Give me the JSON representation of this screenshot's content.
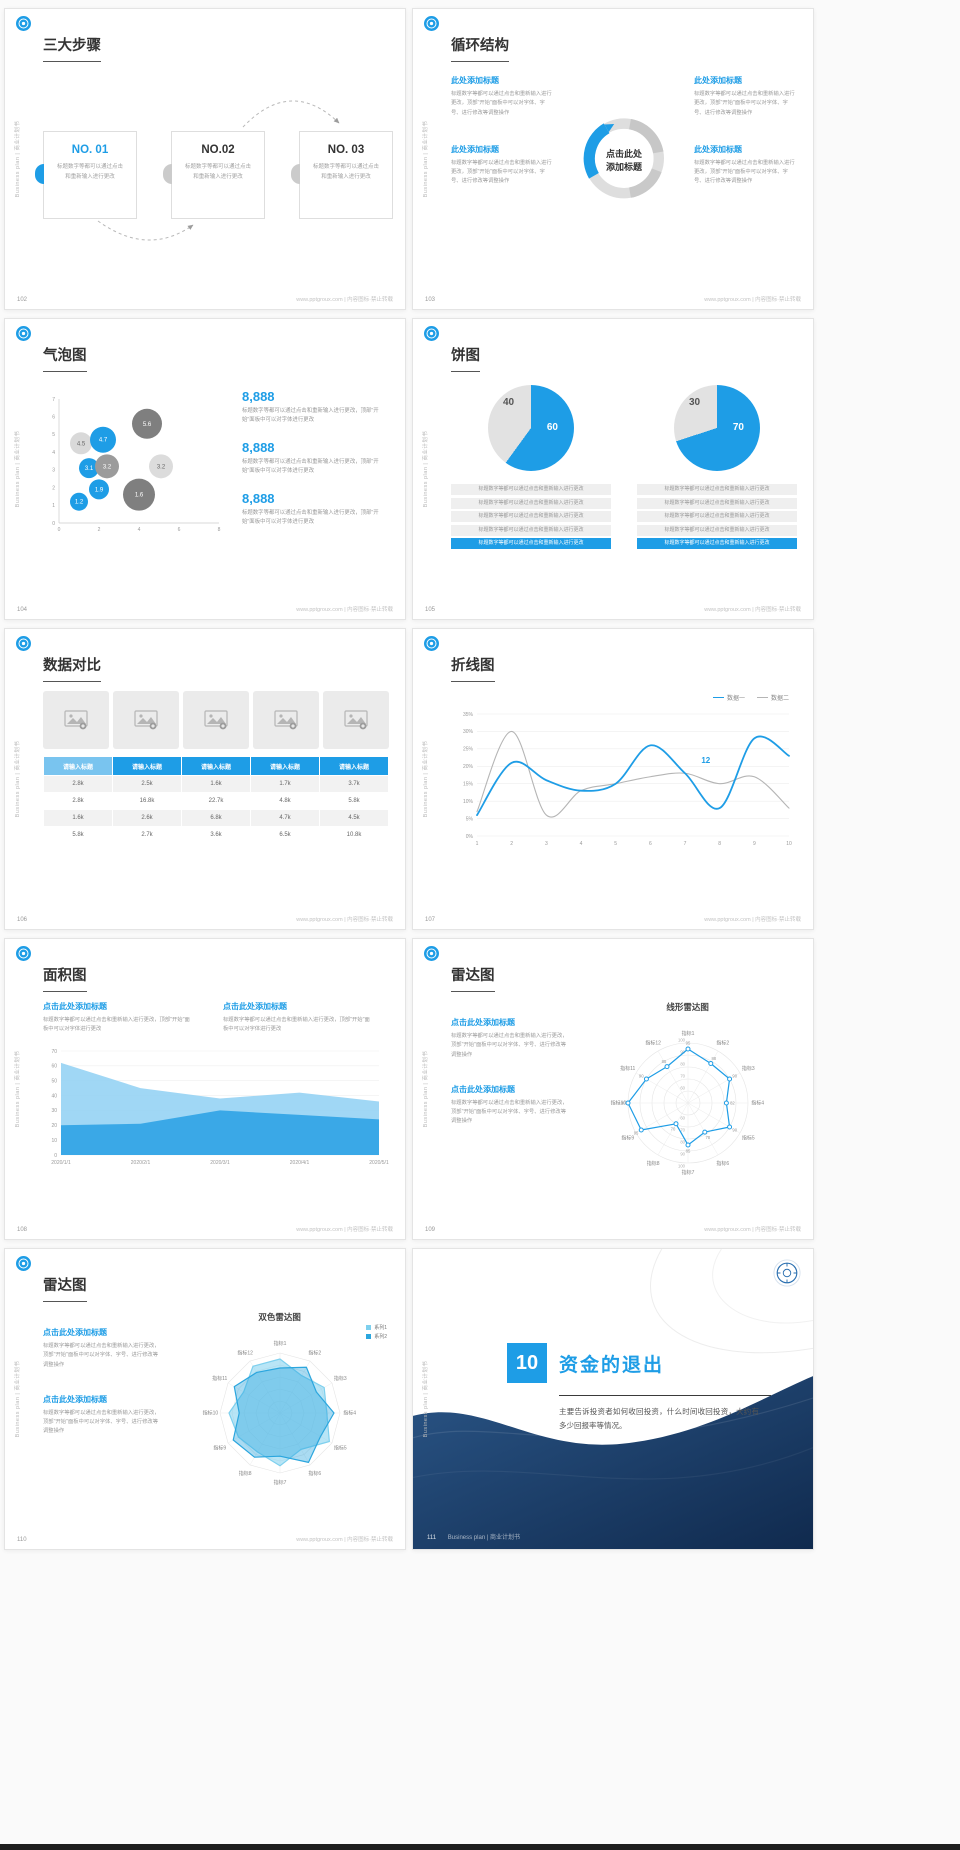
{
  "page": {
    "background": "#fafafa",
    "accent": "#1e9de6",
    "navy": "#16355d",
    "pie_gray": "#e2e2e2",
    "sidebar_text": "Business plan | 商业计划书",
    "footer_site": "www.pptgroux.com | 内容图标·禁止转载"
  },
  "slides": {
    "steps": {
      "page_no": "102",
      "title": "三大步骤",
      "items": [
        {
          "no": "NO. 01",
          "text": "标题数字等都可以通过点击和重新输入进行更改"
        },
        {
          "no": "NO.02",
          "text": "标题数字等都可以通过点击和重新输入进行更改"
        },
        {
          "no": "NO. 03",
          "text": "标题数字等都可以通过点击和重新输入进行更改"
        }
      ]
    },
    "cycle": {
      "page_no": "103",
      "title": "循环结构",
      "center": "点击此处\n添加标题",
      "blocks": [
        {
          "heading": "此处添加标题",
          "text": "标题数字等都可以通过点击和重新输入进行更改，顶部\"开始\"面板中可以对字体、字号、进行修改等调整操作"
        },
        {
          "heading": "此处添加标题",
          "text": "标题数字等都可以通过点击和重新输入进行更改，顶部\"开始\"面板中可以对字体、字号、进行修改等调整操作"
        },
        {
          "heading": "此处添加标题",
          "text": "标题数字等都可以通过点击和重新输入进行更改，顶部\"开始\"面板中可以对字体、字号、进行修改等调整操作"
        },
        {
          "heading": "此处添加标题",
          "text": "标题数字等都可以通过点击和重新输入进行更改，顶部\"开始\"面板中可以对字体、字号、进行修改等调整操作"
        }
      ]
    },
    "bubble": {
      "page_no": "104",
      "title": "气泡图",
      "stats": [
        {
          "value": "8,888",
          "text": "标题数字等都可以通过点击和重新输入进行更改，顶部\"开始\"面板中可以对字体进行更改"
        },
        {
          "value": "8,888",
          "text": "标题数字等都可以通过点击和重新输入进行更改，顶部\"开始\"面板中可以对字体进行更改"
        },
        {
          "value": "8,888",
          "text": "标题数字等都可以通过点击和重新输入进行更改，顶部\"开始\"面板中可以对字体进行更改"
        }
      ]
    },
    "pie": {
      "page_no": "105",
      "title": "饼图",
      "row_text": "标题数字等都可以通过点击和重新输入进行更改"
    },
    "table": {
      "page_no": "106",
      "title": "数据对比"
    },
    "line": {
      "page_no": "107",
      "title": "折线图"
    },
    "area": {
      "page_no": "108",
      "title": "面积图",
      "blocks": [
        {
          "heading": "点击此处添加标题",
          "text": "标题数字等都可以通过点击和重新输入进行更改，顶部\"开始\"面板中可以对字体进行更改"
        },
        {
          "heading": "点击此处添加标题",
          "text": "标题数字等都可以通过点击和重新输入进行更改，顶部\"开始\"面板中可以对字体进行更改"
        }
      ]
    },
    "radar1": {
      "page_no": "109",
      "title": "雷达图",
      "subtitle": "线形雷达图",
      "blocks": [
        {
          "heading": "点击此处添加标题",
          "text": "标题数字等都可以通过点击和重新输入进行更改，顶部\"开始\"面板中可以对字体、字号、进行修改等调整操作"
        },
        {
          "heading": "点击此处添加标题",
          "text": "标题数字等都可以通过点击和重新输入进行更改，顶部\"开始\"面板中可以对字体、字号、进行修改等调整操作"
        }
      ]
    },
    "radar2": {
      "page_no": "110",
      "title": "雷达图",
      "subtitle": "双色雷达图",
      "blocks": [
        {
          "heading": "点击此处添加标题",
          "text": "标题数字等都可以通过点击和重新输入进行更改，顶部\"开始\"面板中可以对字体、字号、进行修改等调整操作"
        },
        {
          "heading": "点击此处添加标题",
          "text": "标题数字等都可以通过点击和重新输入进行更改，顶部\"开始\"面板中可以对字体、字号、进行修改等调整操作"
        }
      ]
    },
    "section": {
      "page_no": "111",
      "number": "10",
      "title": "资金的退出",
      "body": "主要告诉投资者如何收回投资，什么时间收回投资，大约有多少回报率等情况。",
      "footer_label": "Business plan | 商业计划书"
    }
  },
  "chart_data": [
    {
      "id": "bubble",
      "type": "scatter",
      "slide": "104",
      "title": "气泡图",
      "xlim": [
        0,
        8
      ],
      "ylim": [
        0,
        7
      ],
      "xticks": [
        0,
        2,
        4,
        6,
        8
      ],
      "yticks": [
        0,
        1,
        2,
        3,
        4,
        5,
        6,
        7
      ],
      "points": [
        {
          "x": 1.1,
          "y": 4.5,
          "r": 11,
          "label": "4.5",
          "color": "#d9d9d9",
          "label_color": "#666666"
        },
        {
          "x": 2.2,
          "y": 4.7,
          "r": 13,
          "label": "4.7",
          "color": "#1e9de6",
          "label_color": "#ffffff"
        },
        {
          "x": 4.4,
          "y": 5.6,
          "r": 15,
          "label": "5.6",
          "color": "#7f7f7f",
          "label_color": "#ffffff"
        },
        {
          "x": 1.5,
          "y": 3.1,
          "r": 10,
          "label": "3.1",
          "color": "#1e9de6",
          "label_color": "#ffffff"
        },
        {
          "x": 2.4,
          "y": 3.2,
          "r": 12,
          "label": "3.2",
          "color": "#9b9b9b",
          "label_color": "#ffffff"
        },
        {
          "x": 5.1,
          "y": 3.2,
          "r": 12,
          "label": "3.2",
          "color": "#dcdcdc",
          "label_color": "#666666"
        },
        {
          "x": 2.0,
          "y": 1.9,
          "r": 10,
          "label": "1.9",
          "color": "#1e9de6",
          "label_color": "#ffffff"
        },
        {
          "x": 1.0,
          "y": 1.2,
          "r": 9,
          "label": "1.2",
          "color": "#1e9de6",
          "label_color": "#ffffff"
        },
        {
          "x": 4.0,
          "y": 1.6,
          "r": 16,
          "label": "1.6",
          "color": "#7f7f7f",
          "label_color": "#ffffff"
        }
      ]
    },
    {
      "id": "pie1",
      "type": "pie",
      "slide": "105",
      "values": [
        60,
        40
      ],
      "labels": [
        "60",
        "40"
      ],
      "colors": [
        "#1e9de6",
        "#e2e2e2"
      ]
    },
    {
      "id": "pie2",
      "type": "pie",
      "slide": "105",
      "values": [
        70,
        30
      ],
      "labels": [
        "70",
        "30"
      ],
      "colors": [
        "#1e9de6",
        "#e2e2e2"
      ]
    },
    {
      "id": "table",
      "type": "table",
      "slide": "106",
      "title": "数据对比",
      "headers": [
        "请输入标题",
        "请输入标题",
        "请输入标题",
        "请输入标题",
        "请输入标题"
      ],
      "rows": [
        [
          "2.8k",
          "2.5k",
          "1.6k",
          "1.7k",
          "3.7k"
        ],
        [
          "2.8k",
          "16.8k",
          "22.7k",
          "4.8k",
          "5.8k"
        ],
        [
          "1.6k",
          "2.6k",
          "6.8k",
          "4.7k",
          "4.5k"
        ],
        [
          "5.8k",
          "2.7k",
          "3.6k",
          "6.5k",
          "10.8k"
        ]
      ]
    },
    {
      "id": "line",
      "type": "line",
      "slide": "107",
      "title": "折线图",
      "x": [
        1,
        2,
        3,
        4,
        5,
        6,
        7,
        8,
        9,
        10
      ],
      "series": [
        {
          "name": "数据一",
          "color": "#1e9de6",
          "values": [
            6,
            21,
            16,
            13,
            15,
            26,
            18,
            8,
            28,
            23
          ]
        },
        {
          "name": "数据二",
          "color": "#b5b5b5",
          "values": [
            7,
            30,
            6,
            13,
            15,
            17,
            18,
            15,
            17,
            8
          ]
        }
      ],
      "ylim": [
        0,
        35
      ],
      "yticks": [
        "0%",
        "5%",
        "10%",
        "15%",
        "20%",
        "25%",
        "30%",
        "35%"
      ],
      "annotation": {
        "text": "12",
        "x": 7.6,
        "y": 21,
        "color": "#1e9de6"
      },
      "legend_position": "top-right",
      "grid": true
    },
    {
      "id": "area",
      "type": "area",
      "slide": "108",
      "title": "面积图",
      "x": [
        "2020/1/1",
        "2020/2/1",
        "2020/3/1",
        "2020/4/1",
        "2020/5/1"
      ],
      "series": [
        {
          "color": "#8fd0f3",
          "values": [
            62,
            45,
            38,
            42,
            36
          ]
        },
        {
          "color": "#28a0e4",
          "values": [
            20,
            21,
            30,
            27,
            24
          ]
        }
      ],
      "ylim": [
        0,
        70
      ],
      "yticks": [
        0,
        10,
        20,
        30,
        40,
        50,
        60,
        70
      ],
      "grid": true
    },
    {
      "id": "radar_line",
      "type": "radar",
      "slide": "109",
      "subtitle": "线形雷达图",
      "axes": [
        "指标1",
        "指标2",
        "指标3",
        "指标4",
        "指标5",
        "指标6",
        "指标7",
        "指标8",
        "指标9",
        "指标10",
        "指标11",
        "指标12"
      ],
      "rings": [
        60,
        70,
        80,
        90,
        100
      ],
      "rmin": 50,
      "rmax": 100,
      "grid": "circle",
      "ring_labels": true,
      "series": [
        {
          "color": "#1e9de6",
          "markers": true,
          "labels": true,
          "values": [
            95,
            88,
            90,
            82,
            90,
            78,
            85,
            70,
            95,
            100,
            90,
            85
          ]
        }
      ]
    },
    {
      "id": "radar_fill",
      "type": "radar",
      "slide": "110",
      "subtitle": "双色雷达图",
      "axes": [
        "指标1",
        "指标2",
        "指标3",
        "指标4",
        "指标5",
        "指标6",
        "指标7",
        "指标8",
        "指标9",
        "指标10",
        "指标11",
        "指标12"
      ],
      "rings": [
        20,
        40,
        60,
        80,
        100
      ],
      "rmin": 0,
      "rmax": 100,
      "grid": "polygon",
      "ring_labels": false,
      "series": [
        {
          "name": "系列1",
          "color": "#7ed0ee",
          "fill": "rgba(126,208,238,0.55)",
          "values": [
            90,
            72,
            85,
            78,
            95,
            70,
            88,
            75,
            80,
            85,
            70,
            90
          ]
        },
        {
          "name": "系列2",
          "color": "#2ba6de",
          "fill": "rgba(43,166,222,0.40)",
          "values": [
            75,
            88,
            70,
            90,
            78,
            95,
            72,
            85,
            90,
            68,
            88,
            78
          ]
        }
      ]
    }
  ]
}
